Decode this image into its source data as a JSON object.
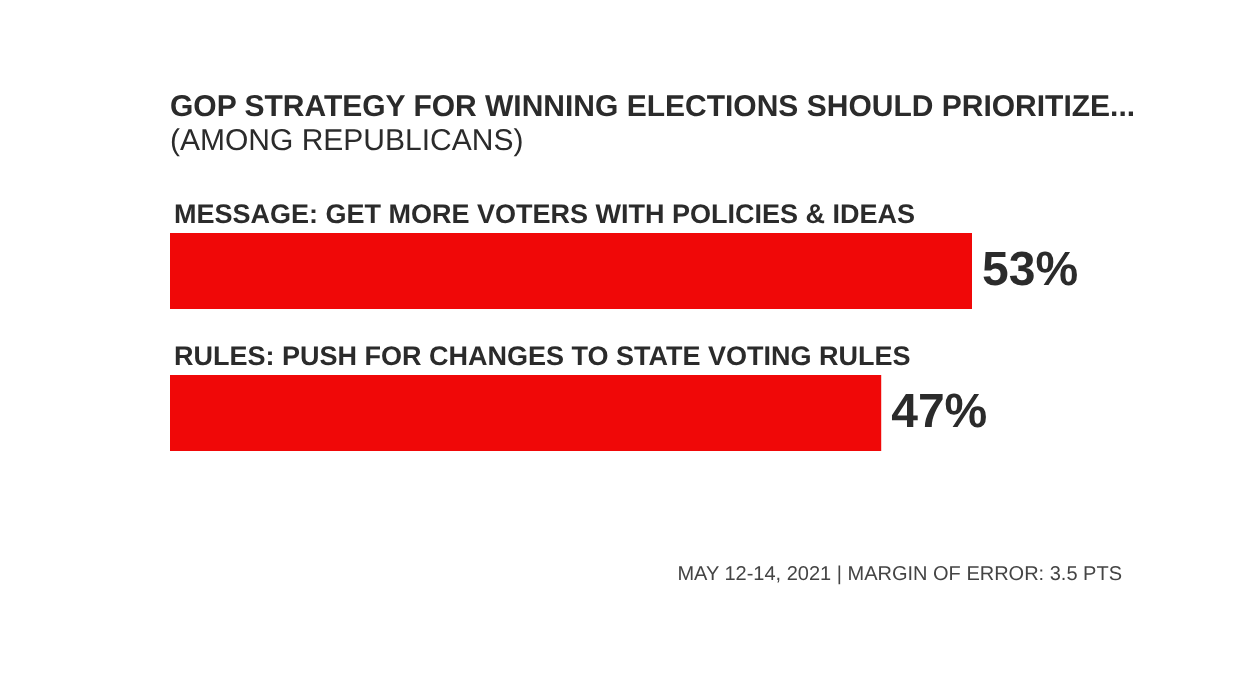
{
  "chart_data": {
    "type": "bar",
    "orientation": "horizontal",
    "title": "GOP STRATEGY FOR WINNING ELECTIONS SHOULD PRIORITIZE...",
    "subtitle": "(AMONG REPUBLICANS)",
    "categories": [
      "MESSAGE: GET MORE VOTERS WITH POLICIES & IDEAS",
      "RULES: PUSH FOR CHANGES TO STATE VOTING RULES"
    ],
    "values": [
      53,
      47
    ],
    "value_labels": [
      "53%",
      "47%"
    ],
    "color": "#f00808",
    "annotations": [
      "MAY 12-14, 2021 | MARGIN OF ERROR: 3.5 PTS"
    ]
  }
}
